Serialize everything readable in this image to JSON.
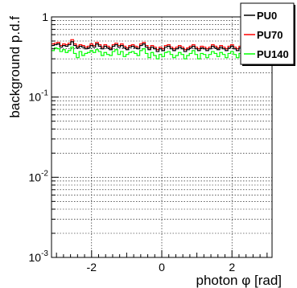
{
  "chart_data": {
    "type": "line",
    "xlabel": "photon φ [rad]",
    "ylabel": "background p.d.f",
    "xlim": [
      -3.1416,
      3.1416
    ],
    "ylim": [
      0.001,
      1
    ],
    "yscale": "log",
    "grid": true,
    "legend": "top-right",
    "xticks": [
      {
        "value": -2,
        "label": "-2"
      },
      {
        "value": 0,
        "label": "0"
      },
      {
        "value": 2,
        "label": "2"
      }
    ],
    "yticks": [
      {
        "value": 1,
        "base": "1",
        "exp": ""
      },
      {
        "value": 0.1,
        "base": "10",
        "exp": "-1"
      },
      {
        "value": 0.01,
        "base": "10",
        "exp": "-2"
      },
      {
        "value": 0.001,
        "base": "10",
        "exp": "-3"
      }
    ],
    "series": [
      {
        "name": "PU0",
        "color": "#000000",
        "values": [
          0.44,
          0.45,
          0.46,
          0.42,
          0.44,
          0.43,
          0.45,
          0.49,
          0.44,
          0.41,
          0.43,
          0.42,
          0.4,
          0.41,
          0.44,
          0.42,
          0.46,
          0.43,
          0.4,
          0.43,
          0.41,
          0.39,
          0.43,
          0.45,
          0.42,
          0.44,
          0.41,
          0.39,
          0.42,
          0.43,
          0.41,
          0.4,
          0.44,
          0.46,
          0.42,
          0.39,
          0.42,
          0.4,
          0.37,
          0.4,
          0.38,
          0.42,
          0.43,
          0.4,
          0.38,
          0.4,
          0.42,
          0.4,
          0.37,
          0.39,
          0.41,
          0.43,
          0.4,
          0.38,
          0.41,
          0.4,
          0.38,
          0.4,
          0.43,
          0.41,
          0.39,
          0.42,
          0.4,
          0.38,
          0.41,
          0.43,
          0.4,
          0.38,
          0.41,
          0.42,
          0.4,
          0.39,
          0.41,
          0.44,
          0.42,
          0.4,
          0.42,
          0.41,
          0.43,
          0.45
        ]
      },
      {
        "name": "PU70",
        "color": "#ff0000",
        "values": [
          0.46,
          0.47,
          0.48,
          0.44,
          0.46,
          0.45,
          0.47,
          0.52,
          0.46,
          0.43,
          0.45,
          0.44,
          0.42,
          0.43,
          0.46,
          0.44,
          0.48,
          0.45,
          0.42,
          0.45,
          0.43,
          0.41,
          0.45,
          0.47,
          0.44,
          0.46,
          0.43,
          0.41,
          0.44,
          0.45,
          0.43,
          0.42,
          0.46,
          0.48,
          0.44,
          0.41,
          0.44,
          0.42,
          0.39,
          0.42,
          0.4,
          0.44,
          0.45,
          0.42,
          0.4,
          0.42,
          0.44,
          0.42,
          0.39,
          0.41,
          0.43,
          0.45,
          0.42,
          0.4,
          0.43,
          0.42,
          0.4,
          0.42,
          0.45,
          0.43,
          0.41,
          0.44,
          0.42,
          0.4,
          0.43,
          0.45,
          0.42,
          0.4,
          0.43,
          0.44,
          0.42,
          0.41,
          0.43,
          0.46,
          0.44,
          0.42,
          0.44,
          0.43,
          0.45,
          0.47
        ]
      },
      {
        "name": "PU140",
        "color": "#00ff00",
        "values": [
          0.38,
          0.41,
          0.4,
          0.37,
          0.39,
          0.36,
          0.38,
          0.42,
          0.35,
          0.31,
          0.37,
          0.33,
          0.35,
          0.36,
          0.38,
          0.36,
          0.39,
          0.37,
          0.33,
          0.36,
          0.34,
          0.33,
          0.37,
          0.39,
          0.34,
          0.37,
          0.32,
          0.34,
          0.36,
          0.37,
          0.35,
          0.33,
          0.38,
          0.4,
          0.35,
          0.31,
          0.36,
          0.33,
          0.3,
          0.34,
          0.32,
          0.36,
          0.37,
          0.34,
          0.31,
          0.33,
          0.36,
          0.34,
          0.3,
          0.33,
          0.35,
          0.38,
          0.34,
          0.3,
          0.35,
          0.34,
          0.31,
          0.34,
          0.37,
          0.35,
          0.32,
          0.36,
          0.34,
          0.31,
          0.35,
          0.37,
          0.34,
          0.31,
          0.35,
          0.36,
          0.34,
          0.32,
          0.35,
          0.38,
          0.36,
          0.33,
          0.36,
          0.35,
          0.37,
          0.39
        ]
      }
    ]
  }
}
